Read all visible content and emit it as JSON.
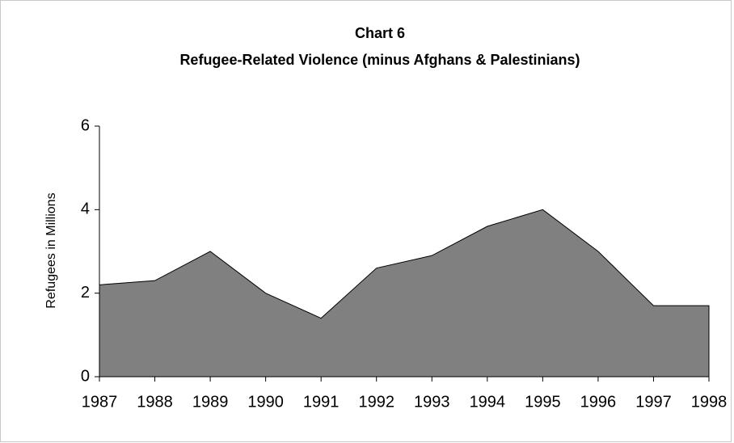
{
  "chart_data": {
    "type": "area",
    "title": "Chart 6",
    "subtitle": "Refugee-Related Violence (minus Afghans & Palestinians)",
    "y_label": "Refugees in Millions",
    "x": [
      1987,
      1988,
      1989,
      1990,
      1991,
      1992,
      1993,
      1994,
      1995,
      1996,
      1997,
      1998
    ],
    "values": [
      2.2,
      2.3,
      3.0,
      2.0,
      1.4,
      2.6,
      2.9,
      3.6,
      4.0,
      3.0,
      1.7,
      1.7
    ],
    "color": "#808080",
    "xlim": [
      1987,
      1998
    ],
    "xticks": [
      1987,
      1988,
      1989,
      1990,
      1991,
      1992,
      1993,
      1994,
      1995,
      1996,
      1997,
      1998
    ],
    "ylim": [
      0,
      6
    ],
    "yticks": [
      0,
      2,
      4,
      6
    ],
    "grid": false
  }
}
